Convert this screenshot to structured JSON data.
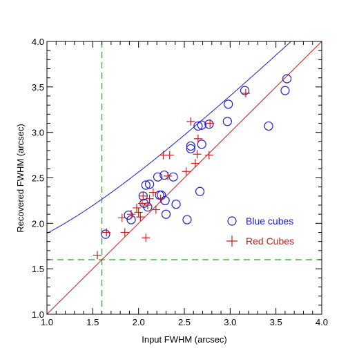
{
  "chart_data": {
    "type": "scatter",
    "xlabel": "Input FWHM (arcsec)",
    "ylabel": "Recovered FWHM (arcsec)",
    "xlim": [
      1.0,
      4.0
    ],
    "ylim": [
      1.0,
      4.0
    ],
    "x_ticks": [
      "1.0",
      "1.5",
      "2.0",
      "2.5",
      "3.0",
      "3.5",
      "4.0"
    ],
    "y_ticks": [
      "1.0",
      "1.5",
      "2.0",
      "2.5",
      "3.0",
      "3.5",
      "4.0"
    ],
    "grid": false,
    "legend_position": "right",
    "series": [
      {
        "name": "Blue cubes",
        "marker": "circle",
        "color": "#1a1acc",
        "points": [
          [
            1.64,
            1.88
          ],
          [
            1.89,
            2.09
          ],
          [
            1.92,
            2.04
          ],
          [
            2.05,
            2.3
          ],
          [
            2.06,
            2.22
          ],
          [
            2.08,
            2.42
          ],
          [
            2.1,
            2.18
          ],
          [
            2.12,
            2.43
          ],
          [
            2.21,
            2.51
          ],
          [
            2.23,
            2.31
          ],
          [
            2.25,
            2.31
          ],
          [
            2.28,
            2.53
          ],
          [
            2.29,
            2.25
          ],
          [
            2.3,
            2.1
          ],
          [
            2.38,
            2.51
          ],
          [
            2.41,
            2.21
          ],
          [
            2.53,
            2.04
          ],
          [
            2.57,
            2.85
          ],
          [
            2.57,
            2.82
          ],
          [
            2.65,
            3.07
          ],
          [
            2.67,
            2.35
          ],
          [
            2.69,
            2.87
          ],
          [
            2.69,
            3.08
          ],
          [
            2.77,
            3.09
          ],
          [
            2.97,
            3.12
          ],
          [
            2.98,
            3.31
          ],
          [
            3.16,
            3.46
          ],
          [
            3.42,
            3.07
          ],
          [
            3.6,
            3.46
          ],
          [
            3.62,
            3.59
          ]
        ]
      },
      {
        "name": "Red Cubes",
        "marker": "plus",
        "color": "#cc1a1a",
        "points": [
          [
            1.55,
            1.65
          ],
          [
            1.65,
            1.9
          ],
          [
            1.82,
            2.06
          ],
          [
            1.85,
            1.9
          ],
          [
            1.92,
            2.1
          ],
          [
            1.98,
            2.17
          ],
          [
            2.0,
            2.12
          ],
          [
            2.02,
            2.07
          ],
          [
            2.04,
            2.22
          ],
          [
            2.05,
            2.3
          ],
          [
            2.08,
            1.84
          ],
          [
            2.1,
            2.2
          ],
          [
            2.12,
            2.27
          ],
          [
            2.16,
            2.34
          ],
          [
            2.19,
            2.15
          ],
          [
            2.24,
            2.27
          ],
          [
            2.27,
            2.75
          ],
          [
            2.32,
            2.52
          ],
          [
            2.34,
            2.75
          ],
          [
            2.52,
            2.57
          ],
          [
            2.57,
            3.12
          ],
          [
            2.62,
            2.66
          ],
          [
            2.64,
            2.76
          ],
          [
            2.65,
            2.93
          ],
          [
            2.77,
            2.75
          ],
          [
            2.78,
            3.1
          ],
          [
            3.17,
            3.43
          ]
        ]
      }
    ],
    "reference_lines": {
      "blue_curve_color": "#1a1acc",
      "red_line_color": "#cc1a1a",
      "dashed_vertical_x": 1.6,
      "dashed_horizontal_y": 1.6,
      "dashed_color": "#22aa22"
    }
  }
}
